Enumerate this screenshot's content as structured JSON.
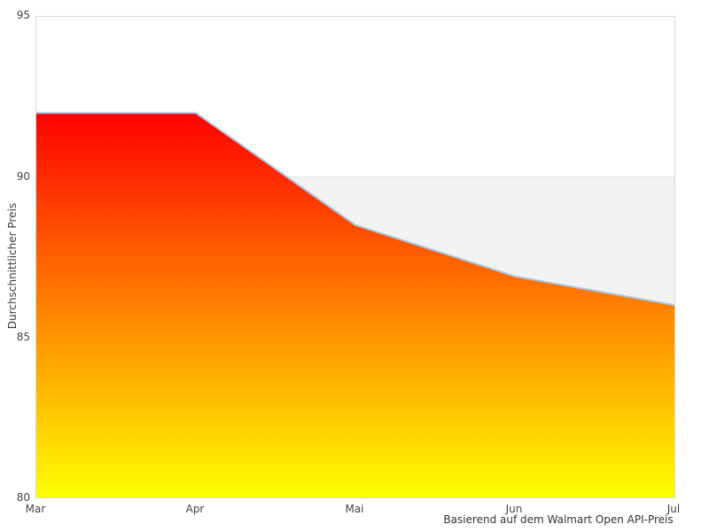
{
  "chart_data": {
    "type": "area",
    "categories": [
      "Mar",
      "Apr",
      "Mai",
      "Jun",
      "Jul"
    ],
    "series": [
      {
        "name": "Durchschnittlicher Preis",
        "values": [
          92,
          92,
          88.5,
          86.9,
          86
        ]
      }
    ],
    "reference_band": {
      "upper_value": 90,
      "fill": "#f3f3f3",
      "edge": "#e4e4e4"
    },
    "xlabel": "Basierend auf dem Walmart Open API-Preis",
    "ylabel": "Durchschnittlicher Preis",
    "ylim": [
      80,
      95
    ],
    "yticks": [
      95,
      90,
      85,
      80
    ],
    "grid": false,
    "legend_position": "none",
    "colors": {
      "line": "#a5c5e3",
      "gradient_top": "#ff0000",
      "gradient_bottom": "#ffff00",
      "plot_border": "#d9d9d9",
      "tick_text": "#444444"
    }
  }
}
